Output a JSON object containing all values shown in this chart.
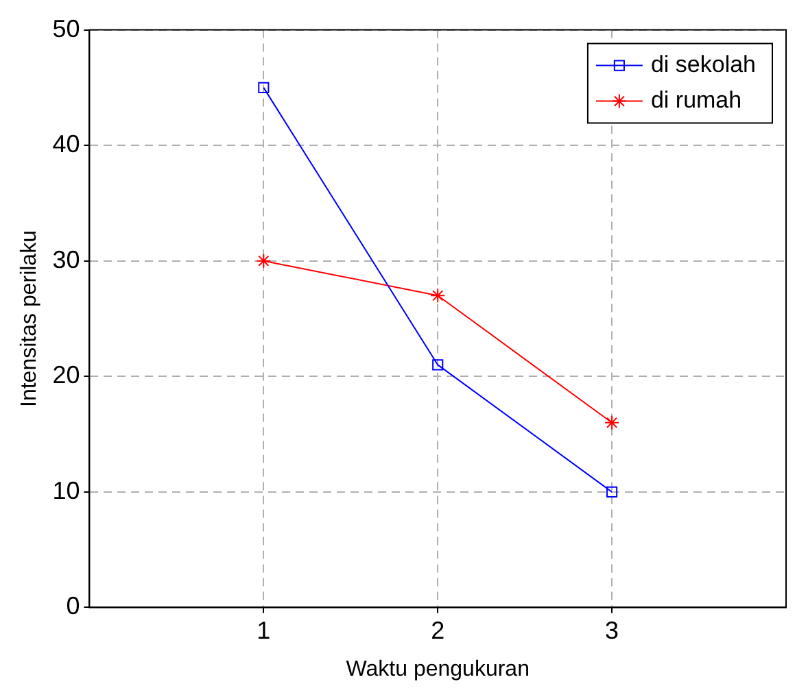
{
  "chart_data": {
    "type": "line",
    "xlabel": "Waktu pengukuran",
    "ylabel": "Intensitas perilaku",
    "x": [
      1,
      2,
      3
    ],
    "series": [
      {
        "name": "di sekolah",
        "color": "#0000ff",
        "values": [
          45,
          21,
          10
        ],
        "marker": "square"
      },
      {
        "name": "di rumah",
        "color": "#ff0000",
        "values": [
          30,
          27,
          16
        ],
        "marker": "cross"
      }
    ],
    "xlim": [
      0,
      4
    ],
    "xticks": [
      1,
      2,
      3
    ],
    "ylim": [
      0,
      50
    ],
    "yticks": [
      0,
      10,
      20,
      30,
      40,
      50
    ],
    "grid": true,
    "legend": "top right",
    "line_style": "solid"
  }
}
